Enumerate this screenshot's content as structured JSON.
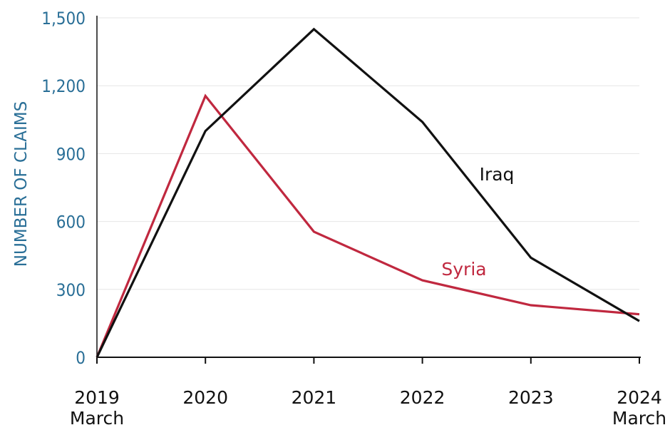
{
  "chart_data": {
    "type": "line",
    "title": "",
    "xlabel": "",
    "ylabel": "NUMBER OF CLAIMS",
    "ylim": [
      0,
      1500
    ],
    "yticks": [
      0,
      300,
      600,
      900,
      1200,
      1500
    ],
    "ytick_labels": [
      "0",
      "300",
      "600",
      "900",
      "1,200",
      "1,500"
    ],
    "x": [
      "2019 March",
      "2020",
      "2021",
      "2022",
      "2023",
      "2024 March"
    ],
    "xtick_labels": [
      {
        "year": "2019",
        "sub": "March"
      },
      {
        "year": "2020",
        "sub": ""
      },
      {
        "year": "2021",
        "sub": ""
      },
      {
        "year": "2022",
        "sub": ""
      },
      {
        "year": "2023",
        "sub": ""
      },
      {
        "year": "2024",
        "sub": "March"
      }
    ],
    "grid": true,
    "legend": "inline",
    "series": [
      {
        "name": "Iraq",
        "color": "#111111",
        "values": [
          0,
          1000,
          1450,
          1040,
          440,
          160
        ]
      },
      {
        "name": "Syria",
        "color": "#c0283f",
        "values": [
          0,
          1155,
          555,
          340,
          230,
          190
        ]
      }
    ]
  },
  "colors": {
    "axis_text": "#2a6f97",
    "grid": "#e6e6e6",
    "axis": "#111111"
  }
}
